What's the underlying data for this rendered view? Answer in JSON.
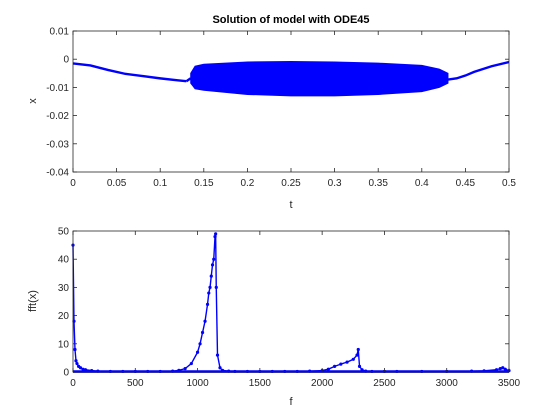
{
  "window": {
    "title": "Solution of model with ODE45"
  },
  "chart_data": [
    {
      "type": "line",
      "title": "Solution of model with ODE45",
      "xlabel": "t",
      "ylabel": "x",
      "xlim": [
        0,
        0.5
      ],
      "ylim": [
        -0.04,
        0.01
      ],
      "xticks": [
        "0",
        "0.05",
        "0.1",
        "0.15",
        "0.2",
        "0.25",
        "0.3",
        "0.35",
        "0.4",
        "0.45",
        "0.5"
      ],
      "yticks": [
        "0.01",
        "0",
        "-0.01",
        "-0.02",
        "-0.03",
        "-0.04"
      ],
      "grid": false,
      "color": "#0000ff",
      "series": [
        {
          "x": [
            0,
            0.02,
            0.04,
            0.06,
            0.08,
            0.1,
            0.12,
            0.13
          ],
          "values": [
            -0.0015,
            -0.0022,
            -0.0038,
            -0.0052,
            -0.006,
            -0.0068,
            -0.0075,
            -0.0078
          ]
        },
        {
          "x": [
            0.135,
            0.14,
            0.15,
            0.2,
            0.25,
            0.3,
            0.35,
            0.4,
            0.42,
            0.43
          ],
          "upper": [
            -0.005,
            -0.0025,
            -0.0018,
            -0.001,
            -0.0008,
            -0.001,
            -0.0014,
            -0.0022,
            -0.0035,
            -0.005
          ],
          "lower": [
            -0.0085,
            -0.0105,
            -0.011,
            -0.0125,
            -0.013,
            -0.013,
            -0.0125,
            -0.0115,
            -0.01,
            -0.0085
          ]
        },
        {
          "x": [
            0.43,
            0.44,
            0.45,
            0.46,
            0.48,
            0.5
          ],
          "values": [
            -0.0072,
            -0.0068,
            -0.0058,
            -0.0045,
            -0.0025,
            -0.001
          ]
        }
      ]
    },
    {
      "type": "line",
      "title": "",
      "xlabel": "f",
      "ylabel": "fft(x)",
      "xlim": [
        0,
        3500
      ],
      "ylim": [
        0,
        50
      ],
      "xticks": [
        "0",
        "500",
        "1000",
        "1500",
        "2000",
        "2500",
        "3000",
        "3500"
      ],
      "yticks": [
        "50",
        "40",
        "30",
        "20",
        "10",
        "0"
      ],
      "grid": false,
      "color": "#0000ff",
      "marker": "dot",
      "x": [
        0,
        8,
        16,
        24,
        32,
        45,
        60,
        80,
        100,
        150,
        200,
        300,
        400,
        500,
        600,
        700,
        800,
        850,
        900,
        950,
        1000,
        1020,
        1040,
        1060,
        1080,
        1090,
        1100,
        1110,
        1120,
        1130,
        1140,
        1145,
        1150,
        1160,
        1180,
        1200,
        1250,
        1300,
        1400,
        1500,
        1600,
        1700,
        1800,
        1900,
        2000,
        2050,
        2100,
        2150,
        2200,
        2250,
        2280,
        2290,
        2300,
        2320,
        2350,
        2400,
        2500,
        2600,
        2800,
        3000,
        3200,
        3300,
        3400,
        3430,
        3450,
        3470,
        3500
      ],
      "values": [
        45,
        18,
        8,
        4,
        3,
        2,
        1.5,
        1,
        0.8,
        0.5,
        0.3,
        0.2,
        0.2,
        0.2,
        0.2,
        0.2,
        0.3,
        0.6,
        1.2,
        3,
        7,
        10,
        14,
        18,
        24,
        28,
        30,
        34,
        38,
        40,
        48,
        49,
        30,
        6,
        1.5,
        0.6,
        0.3,
        0.2,
        0.2,
        0.2,
        0.2,
        0.2,
        0.2,
        0.3,
        0.5,
        1,
        2,
        2.8,
        3.5,
        4.5,
        6,
        8,
        2,
        0.8,
        0.3,
        0.2,
        0.2,
        0.2,
        0.2,
        0.2,
        0.3,
        0.4,
        0.8,
        1.2,
        1.5,
        1,
        0.5
      ]
    }
  ]
}
